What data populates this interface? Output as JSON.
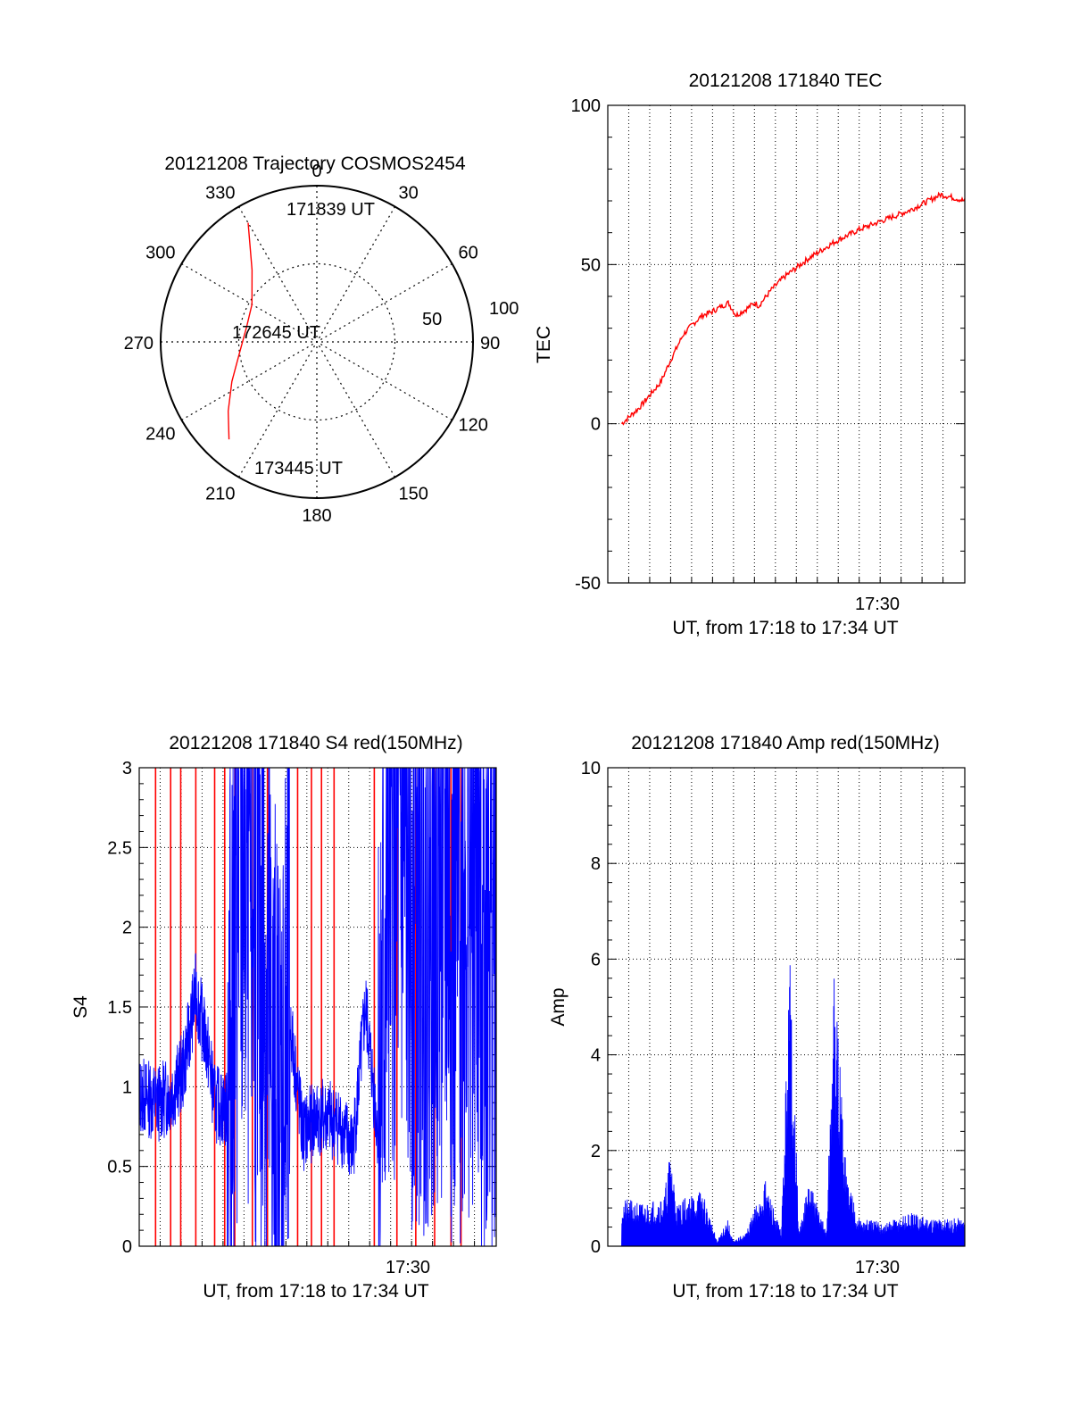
{
  "colors": {
    "red": "#ff0000",
    "blue": "#0000ff",
    "axis": "#000000",
    "grid": "#000000"
  },
  "polar": {
    "title": "20121208 Trajectory COSMOS2454",
    "angle_labels": [
      "0",
      "30",
      "60",
      "90",
      "120",
      "150",
      "180",
      "210",
      "240",
      "270",
      "300",
      "330"
    ],
    "radius_labels": [
      "50",
      "100"
    ],
    "start_label": "171839 UT",
    "mid_label": "172645 UT",
    "end_label": "173445 UT",
    "trajectory": [
      {
        "az": 330,
        "zen": 88
      },
      {
        "az": 318,
        "zen": 62
      },
      {
        "az": 300,
        "zen": 48
      },
      {
        "az": 282,
        "zen": 46
      },
      {
        "az": 262,
        "zen": 50
      },
      {
        "az": 245,
        "zen": 60
      },
      {
        "az": 232,
        "zen": 72
      },
      {
        "az": 222,
        "zen": 84
      }
    ]
  },
  "chart_data": [
    {
      "type": "line",
      "title": "20121208 171840 TEC",
      "xlabel": "UT, from 17:18 to 17:34 UT",
      "ylabel": "TEC",
      "xlim": [
        17.3,
        17.584
      ],
      "ylim": [
        -50,
        100
      ],
      "xtick_labels": [
        "17:30"
      ],
      "ytick_labels": [
        "-50",
        "0",
        "50",
        "100"
      ],
      "series": [
        {
          "color": "#ff0000",
          "x": [
            17.311,
            17.325,
            17.342,
            17.35,
            17.36,
            17.367,
            17.375,
            17.382,
            17.391,
            17.396,
            17.402,
            17.41,
            17.417,
            17.42,
            17.43,
            17.44,
            17.46,
            17.48,
            17.5,
            17.52,
            17.54,
            17.555,
            17.565,
            17.575,
            17.584
          ],
          "y": [
            0,
            5,
            13,
            20,
            28,
            31,
            34,
            35,
            37,
            38,
            34,
            36,
            38,
            37,
            42,
            46,
            52,
            57,
            61,
            64,
            67,
            70,
            72,
            71,
            70
          ]
        }
      ]
    },
    {
      "type": "line",
      "title": "20121208 171840 S4 red(150MHz)",
      "xlabel": "UT, from 17:18 to 17:34 UT",
      "ylabel": "S4",
      "xlim": [
        17.3,
        17.584
      ],
      "ylim": [
        0,
        3
      ],
      "xtick_labels": [
        "17:30"
      ],
      "ytick_labels": [
        "0",
        "0.5",
        "1",
        "1.5",
        "2",
        "2.5",
        "3"
      ],
      "series": [
        {
          "color": "#0000ff",
          "x": [
            17.3,
            17.315,
            17.325,
            17.335,
            17.345,
            17.355,
            17.36,
            17.37,
            17.38,
            17.39,
            17.4,
            17.41,
            17.42,
            17.43,
            17.44,
            17.45,
            17.46,
            17.47,
            17.48,
            17.49,
            17.5,
            17.51,
            17.52,
            17.53,
            17.54,
            17.55,
            17.56,
            17.57,
            17.584
          ],
          "y": [
            0.95,
            0.9,
            0.95,
            1.1,
            1.6,
            1.2,
            0.9,
            0.85,
            2.5,
            2.2,
            1.8,
            0.5,
            1.4,
            0.7,
            0.8,
            0.8,
            0.75,
            0.6,
            1.5,
            0.7,
            2.6,
            2.4,
            2.2,
            2.3,
            2.4,
            2.0,
            2.3,
            2.2,
            2.0
          ]
        },
        {
          "color": "#ff0000",
          "spikes_x": [
            17.313,
            17.325,
            17.333,
            17.345,
            17.36,
            17.368,
            17.376,
            17.39,
            17.402,
            17.426,
            17.437,
            17.445,
            17.455,
            17.487,
            17.505,
            17.52,
            17.535,
            17.548,
            17.556
          ]
        }
      ]
    },
    {
      "type": "line",
      "title": "20121208 171840 Amp red(150MHz)",
      "xlabel": "UT, from 17:18 to 17:34 UT",
      "ylabel": "Amp",
      "xlim": [
        17.3,
        17.584
      ],
      "ylim": [
        0,
        10
      ],
      "xtick_labels": [
        "17:30"
      ],
      "ytick_labels": [
        "0",
        "2",
        "4",
        "6",
        "8",
        "10"
      ],
      "series": [
        {
          "color": "#0000ff",
          "x": [
            17.311,
            17.33,
            17.345,
            17.35,
            17.355,
            17.36,
            17.375,
            17.387,
            17.395,
            17.4,
            17.41,
            17.425,
            17.438,
            17.445,
            17.452,
            17.46,
            17.474,
            17.48,
            17.49,
            17.5,
            17.52,
            17.54,
            17.56,
            17.584
          ],
          "y": [
            1.0,
            0.9,
            1.1,
            2.1,
            0.9,
            1.0,
            1.2,
            0.1,
            0.6,
            0.1,
            0.3,
            1.4,
            0.3,
            6.3,
            0.3,
            1.4,
            0.3,
            5.8,
            1.6,
            0.6,
            0.5,
            0.7,
            0.6,
            0.6
          ]
        }
      ]
    }
  ]
}
